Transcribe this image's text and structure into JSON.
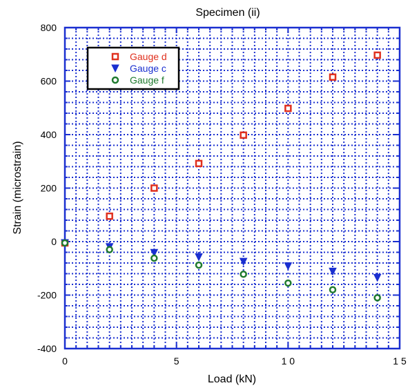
{
  "chart_data": {
    "type": "scatter",
    "title": "Specimen (ii)",
    "xlabel": "Load (kN)",
    "ylabel": "Strain (microstrain)",
    "xlim": [
      0,
      15
    ],
    "ylim": [
      -400,
      800
    ],
    "x_ticks": [
      0,
      5,
      10,
      15
    ],
    "x_tick_labels": [
      "0",
      "5",
      "1 0",
      "1 5"
    ],
    "y_ticks": [
      -400,
      -200,
      0,
      200,
      400,
      600,
      800
    ],
    "y_tick_labels": [
      "-400",
      "-200",
      "0",
      "200",
      "400",
      "600",
      "800"
    ],
    "grid": "dotted",
    "legend_position": "top-left",
    "axis_color": "#1a2fd0",
    "series": [
      {
        "name": "Gauge d",
        "marker": "hollow-square",
        "color": "#e0301e",
        "x": [
          0,
          2,
          4,
          6,
          8,
          10,
          12,
          14
        ],
        "y": [
          -5,
          95,
          200,
          292,
          398,
          498,
          615,
          697
        ]
      },
      {
        "name": "Gauge c",
        "marker": "filled-down-triangle",
        "color": "#1a2fd0",
        "x": [
          0,
          2,
          4,
          6,
          8,
          10,
          12,
          14
        ],
        "y": [
          -5,
          -20,
          -42,
          -58,
          -75,
          -92,
          -112,
          -135
        ]
      },
      {
        "name": "Gauge f",
        "marker": "hollow-circle",
        "color": "#1f7a2e",
        "x": [
          0,
          2,
          4,
          6,
          8,
          10,
          12,
          14
        ],
        "y": [
          -5,
          -30,
          -62,
          -88,
          -122,
          -155,
          -180,
          -210
        ]
      }
    ]
  }
}
